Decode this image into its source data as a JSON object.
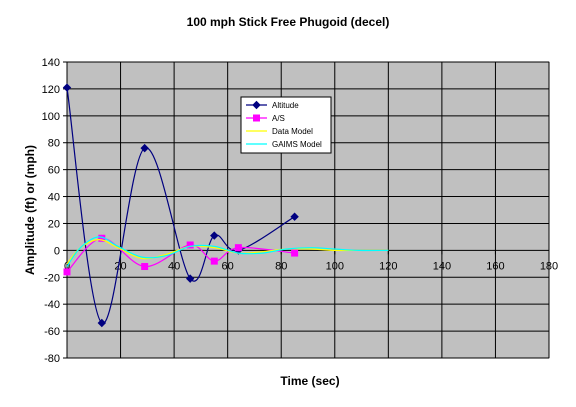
{
  "chart_data": {
    "type": "line",
    "title": "100 mph Stick Free Phugoid (decel)",
    "xlabel": "Time (sec)",
    "ylabel": "Amplitude (ft) or (mph)",
    "xlim": [
      0,
      180
    ],
    "ylim": [
      -80,
      140
    ],
    "x_ticks": [
      0,
      20,
      40,
      60,
      80,
      100,
      120,
      140,
      160,
      180
    ],
    "y_ticks": [
      -80,
      -60,
      -40,
      -20,
      0,
      20,
      40,
      60,
      80,
      100,
      120,
      140
    ],
    "grid": true,
    "plot_background": "#c0c0c0",
    "legend_position": "inside-top-center",
    "series": [
      {
        "name": "Altitude",
        "color": "#000080",
        "marker": "diamond",
        "smooth": true,
        "x": [
          0,
          13,
          29,
          46,
          55,
          64,
          85
        ],
        "y": [
          121,
          -54,
          76,
          -21,
          11,
          0,
          25
        ]
      },
      {
        "name": "A/S",
        "color": "#ff00ff",
        "marker": "square",
        "smooth": true,
        "x": [
          0,
          13,
          29,
          46,
          55,
          64,
          85
        ],
        "y": [
          -16,
          9,
          -12,
          4,
          -8,
          2,
          -2
        ]
      },
      {
        "name": "Data Model",
        "color": "#ffff00",
        "marker": "none",
        "smooth": true,
        "x": [
          0,
          5,
          12,
          19,
          28,
          37,
          46,
          55,
          64,
          73,
          82,
          91,
          100,
          109,
          120
        ],
        "y": [
          -10,
          2,
          8,
          2,
          -6,
          -3,
          3,
          2,
          -2,
          -1,
          1,
          1,
          0,
          0,
          0
        ]
      },
      {
        "name": "GAIMS Model",
        "color": "#00ffff",
        "marker": "none",
        "smooth": true,
        "x": [
          0,
          5,
          12,
          19,
          28,
          37,
          46,
          55,
          64,
          73,
          82,
          91,
          100,
          109,
          120
        ],
        "y": [
          -12,
          2,
          10,
          3,
          -5,
          -4,
          3,
          3,
          -2,
          -2,
          1,
          2,
          1,
          0,
          0
        ]
      }
    ]
  }
}
